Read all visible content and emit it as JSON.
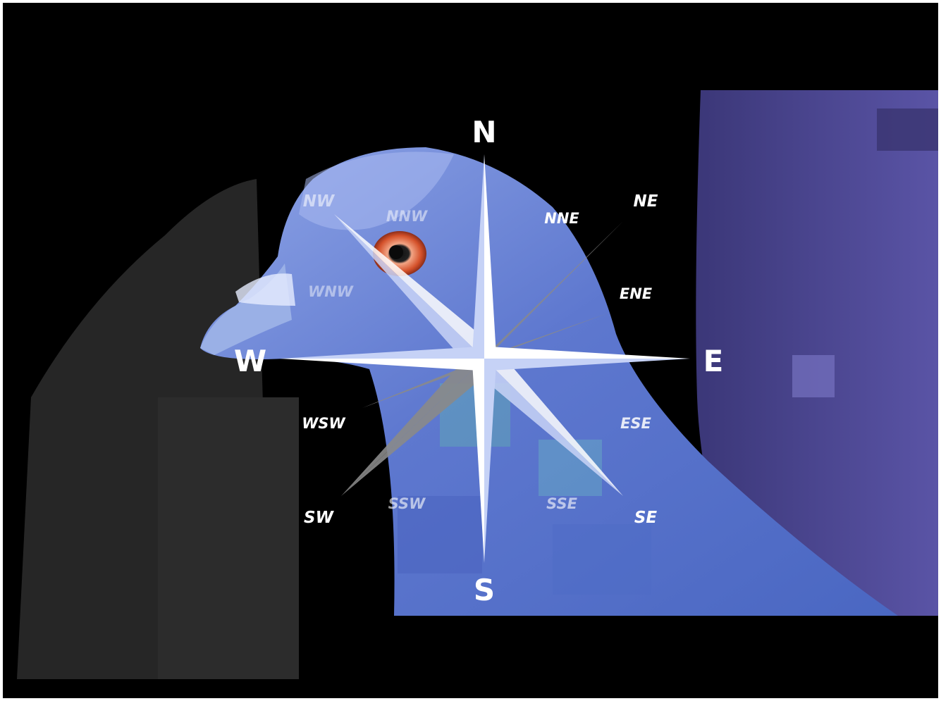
{
  "image": {
    "description_labels": true
  },
  "compass": {
    "cardinal": {
      "n": "N",
      "e": "E",
      "s": "S",
      "w": "W"
    },
    "intercardinal": {
      "ne": "NE",
      "se": "SE",
      "sw": "SW",
      "nw": "NW"
    },
    "secondary": {
      "nne": "NNE",
      "ene": "ENE",
      "ese": "ESE",
      "sse": "SSE",
      "ssw": "SSW",
      "wsw": "WSW",
      "wnw": "WNW",
      "nnw": "NNW"
    }
  },
  "colors": {
    "background": "#000000",
    "bird_blue": "#5b72c8",
    "bird_light": "#8fa6e6",
    "purple_right": "#4d4793",
    "eye_orange": "#d8603a",
    "star_white": "#ffffff"
  }
}
